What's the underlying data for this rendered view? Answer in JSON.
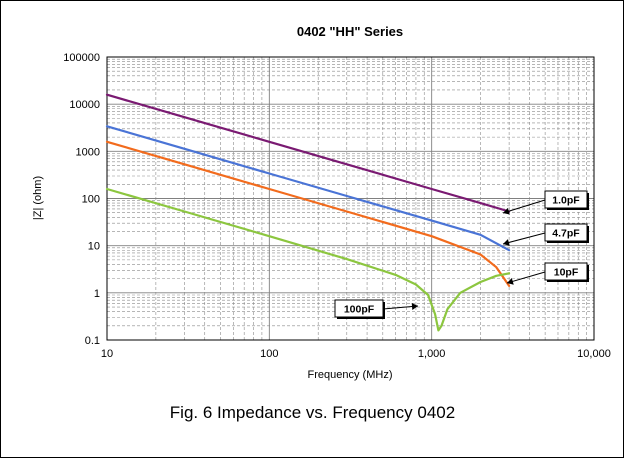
{
  "chart_data": {
    "type": "line",
    "title": "0402 \"HH\" Series",
    "xlabel": "Frequency (MHz)",
    "ylabel": "|Z| (ohm)",
    "x_scale": "log",
    "y_scale": "log",
    "xlim": [
      10,
      10000
    ],
    "ylim": [
      0.1,
      100000
    ],
    "grid": true,
    "x_ticks": [
      "10",
      "100",
      "1,000",
      "10,000"
    ],
    "y_ticks": [
      "0.1",
      "1",
      "10",
      "100",
      "1000",
      "10000",
      "100000"
    ],
    "series": [
      {
        "name": "1.0pF",
        "color": "#7a1a72",
        "x": [
          10,
          30,
          100,
          300,
          1000,
          2000,
          3000
        ],
        "y": [
          15900,
          5300,
          1590,
          530,
          159,
          80,
          53
        ]
      },
      {
        "name": "4.7pF",
        "color": "#4a74d6",
        "x": [
          10,
          30,
          100,
          300,
          1000,
          2000,
          3000
        ],
        "y": [
          3390,
          1130,
          339,
          113,
          34,
          17,
          8
        ]
      },
      {
        "name": "10pF",
        "color": "#f26b1d",
        "x": [
          10,
          30,
          100,
          300,
          1000,
          2000,
          2500,
          3000
        ],
        "y": [
          1590,
          530,
          159,
          53,
          15.9,
          6.5,
          3.5,
          1.4
        ]
      },
      {
        "name": "100pF",
        "color": "#8cc63f",
        "x": [
          10,
          30,
          100,
          300,
          600,
          800,
          950,
          1050,
          1100,
          1150,
          1250,
          1500,
          2000,
          2500,
          3000
        ],
        "y": [
          159,
          53,
          15.9,
          5.2,
          2.4,
          1.5,
          0.9,
          0.35,
          0.16,
          0.2,
          0.45,
          1.0,
          1.7,
          2.3,
          2.6
        ]
      }
    ]
  },
  "caption": "Fig. 6 Impedance vs. Frequency 0402"
}
